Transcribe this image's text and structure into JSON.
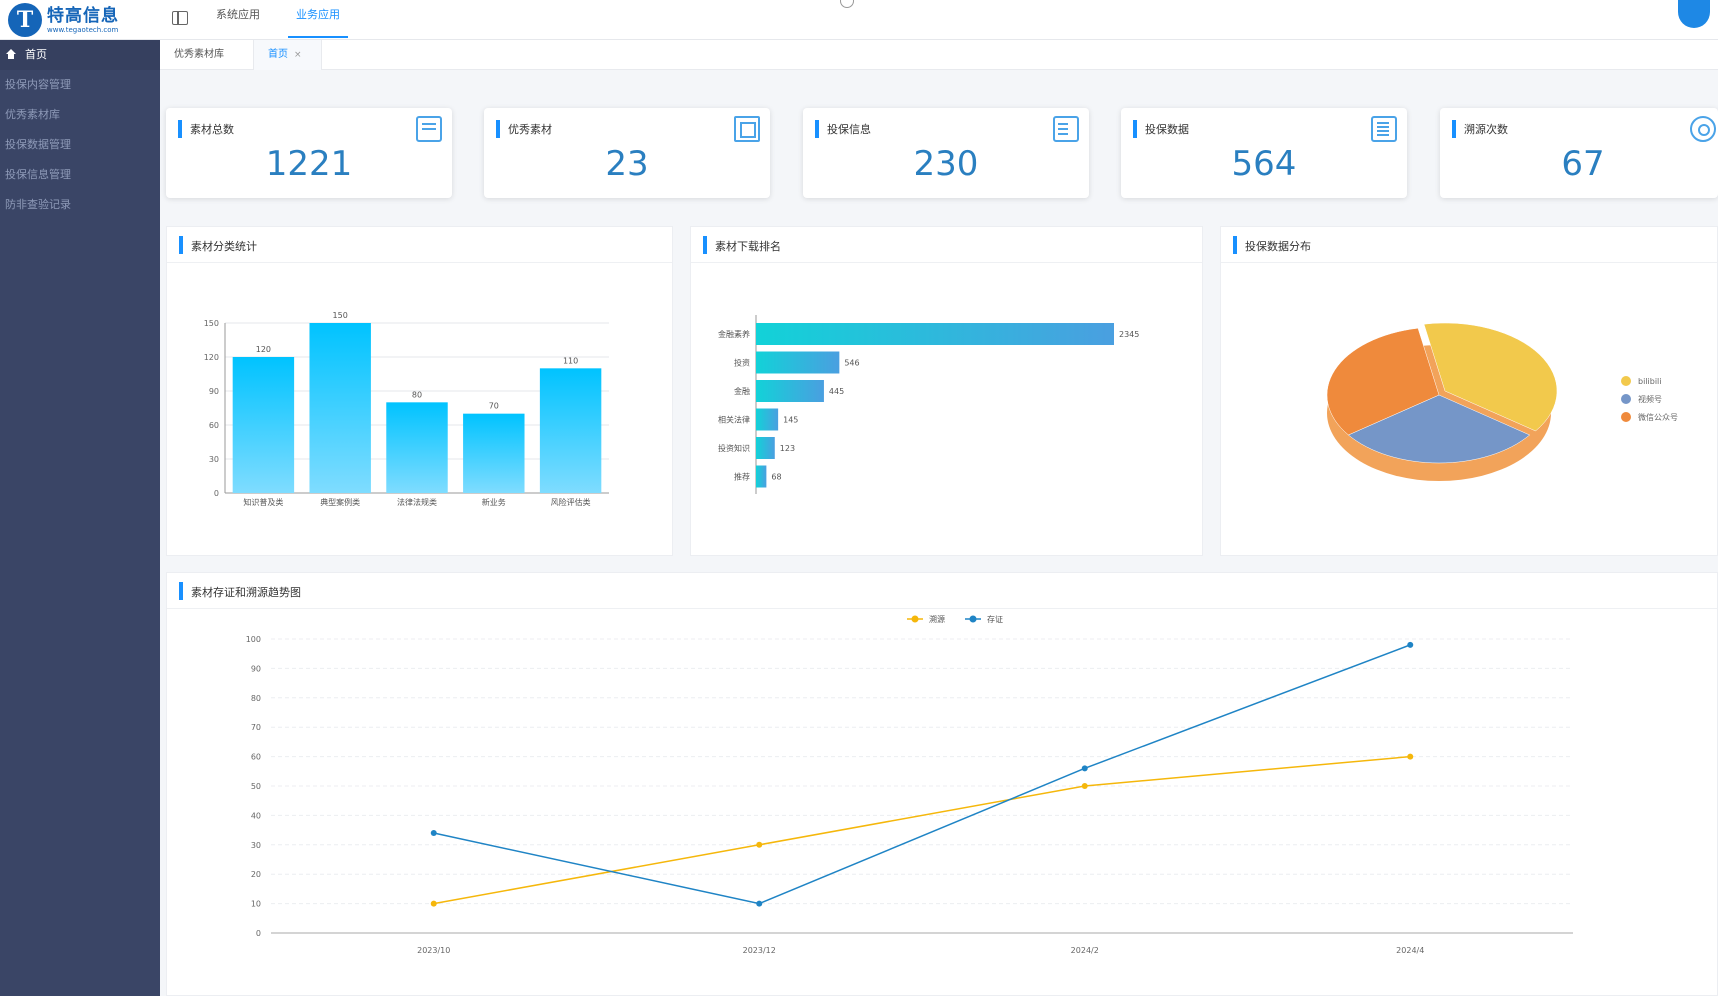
{
  "app": {
    "logo": {
      "mark": "T",
      "name": "特高信息",
      "url": "www.tegaotech.com"
    },
    "top_nav": [
      {
        "label": "系统应用"
      },
      {
        "label": "业务应用"
      }
    ]
  },
  "sidebar": {
    "items": [
      {
        "label": "首页"
      },
      {
        "label": "投保内容管理"
      },
      {
        "label": "优秀素材库"
      },
      {
        "label": "投保数据管理"
      },
      {
        "label": "投保信息管理"
      },
      {
        "label": "防非查验记录"
      }
    ]
  },
  "tabs": [
    {
      "label": "优秀素材库"
    },
    {
      "label": "首页",
      "close": "×"
    }
  ],
  "stats": [
    {
      "title": "素材总数",
      "value": "1221",
      "icon": "tray-icon"
    },
    {
      "title": "优秀素材",
      "value": "23",
      "icon": "copy-icon"
    },
    {
      "title": "投保信息",
      "value": "230",
      "icon": "form-icon"
    },
    {
      "title": "投保数据",
      "value": "564",
      "icon": "document-icon"
    },
    {
      "title": "溯源次数",
      "value": "67",
      "icon": "search-icon"
    }
  ],
  "panels": {
    "category": {
      "title": "素材分类统计"
    },
    "downloads": {
      "title": "素材下载排名"
    },
    "distribution": {
      "title": "投保数据分布"
    },
    "trend": {
      "title": "素材存证和溯源趋势图"
    }
  },
  "colors": {
    "accent": "#1890ff",
    "sidebar_bg": "#3a4566",
    "bar_gradient_top": "#00c3ff",
    "bar_gradient_bottom": "#7fdcff",
    "hbar_start": "#12d2d8",
    "hbar_end": "#4a9fe0",
    "line_trace": "#f5b70b",
    "line_deposit": "#1f84c5"
  },
  "chart_data": [
    {
      "type": "bar",
      "title": "素材分类统计",
      "categories": [
        "知识普及类",
        "典型案例类",
        "法律法规类",
        "新业务",
        "风险评估类"
      ],
      "values": [
        120,
        150,
        80,
        70,
        110
      ],
      "ylim": [
        0,
        150
      ],
      "yticks": [
        0,
        30,
        60,
        90,
        120,
        150
      ],
      "grid": true
    },
    {
      "type": "bar",
      "orientation": "horizontal",
      "title": "素材下载排名",
      "categories": [
        "金融素养",
        "投资",
        "金融",
        "相关法律",
        "投资知识",
        "推荐"
      ],
      "values": [
        2345,
        546,
        445,
        145,
        123,
        68
      ]
    },
    {
      "type": "pie",
      "title": "投保数据分布",
      "legend_position": "right",
      "slices": [
        {
          "name": "bilibili",
          "value": 38,
          "color": "#f2c94c"
        },
        {
          "name": "视频号",
          "value": 30,
          "color": "#7596c8"
        },
        {
          "name": "微信公众号",
          "value": 32,
          "color": "#ef8a3c"
        }
      ]
    },
    {
      "type": "line",
      "title": "素材存证和溯源趋势图",
      "categories": [
        "2023/10",
        "2023/12",
        "2024/2",
        "2024/4"
      ],
      "ylim": [
        0,
        100
      ],
      "yticks": [
        0,
        10,
        20,
        30,
        40,
        50,
        60,
        70,
        80,
        90,
        100
      ],
      "legend_position": "top",
      "grid": true,
      "series": [
        {
          "name": "溯源",
          "values": [
            10,
            30,
            50,
            60
          ],
          "color": "#f5b70b"
        },
        {
          "name": "存证",
          "values": [
            34,
            10,
            56,
            98
          ],
          "color": "#1f84c5"
        }
      ]
    }
  ]
}
